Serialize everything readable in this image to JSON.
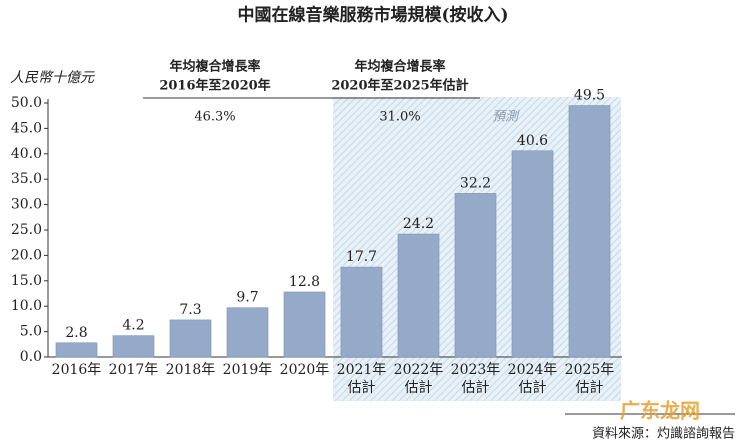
{
  "chart_data": {
    "type": "bar",
    "title": "中國在線音樂服務市場規模(按收入)",
    "y_label": "人民幣十億元",
    "categories": [
      [
        "2016年"
      ],
      [
        "2017年"
      ],
      [
        "2018年"
      ],
      [
        "2019年"
      ],
      [
        "2020年"
      ],
      [
        "2021年",
        "估計"
      ],
      [
        "2022年",
        "估計"
      ],
      [
        "2023年",
        "估計"
      ],
      [
        "2024年",
        "估計"
      ],
      [
        "2025年",
        "估計"
      ]
    ],
    "values": [
      2.8,
      4.2,
      7.3,
      9.7,
      12.8,
      17.7,
      24.2,
      32.2,
      40.6,
      49.5
    ],
    "color": "#95a9c9",
    "ylim": [
      0,
      50
    ],
    "yticks": [
      {
        "value": 0,
        "label": "0.0"
      },
      {
        "value": 5,
        "label": "5.0"
      },
      {
        "value": 10,
        "label": "10.0"
      },
      {
        "value": 15,
        "label": "15.0"
      },
      {
        "value": 20,
        "label": "20.0"
      },
      {
        "value": 25,
        "label": "25.0"
      },
      {
        "value": 30,
        "label": "30.0"
      },
      {
        "value": 35,
        "label": "35.0"
      },
      {
        "value": 40,
        "label": "40.0"
      },
      {
        "value": 45,
        "label": "45.0"
      },
      {
        "value": 50,
        "label": "50.0"
      }
    ],
    "grid": false,
    "cagr": [
      {
        "label": "年均複合增長率",
        "period": "2016年至2020年",
        "value": "46.3%"
      },
      {
        "label": "年均複合增長率",
        "period": "2020年至2025年估計",
        "value": "31.0%"
      }
    ],
    "forecast_label": "預測",
    "source": "資料來源：灼識諮詢報告",
    "watermark": "广东龙网"
  }
}
